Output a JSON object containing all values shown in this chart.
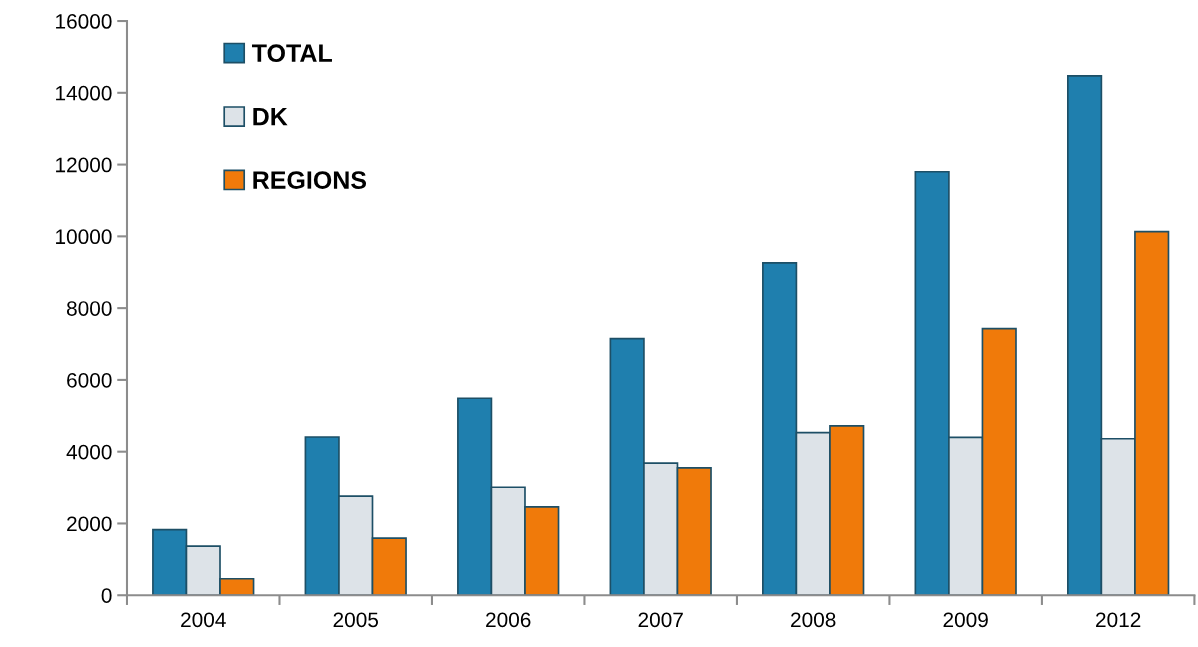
{
  "chart_data": {
    "type": "bar",
    "categories": [
      "2004",
      "2005",
      "2006",
      "2007",
      "2008",
      "2009",
      "2012"
    ],
    "series": [
      {
        "name": "TOTAL",
        "color": "#1f7fae",
        "values": [
          1830,
          4410,
          5490,
          7150,
          9260,
          11800,
          14470
        ]
      },
      {
        "name": "DK",
        "color": "#dde3e8",
        "values": [
          1370,
          2760,
          3010,
          3680,
          4530,
          4400,
          4360
        ]
      },
      {
        "name": "REGIONS",
        "color": "#f07a0a",
        "values": [
          460,
          1590,
          2460,
          3550,
          4720,
          7430,
          10130
        ]
      }
    ],
    "ylim": [
      0,
      16000
    ],
    "yticks": [
      0,
      2000,
      4000,
      6000,
      8000,
      10000,
      12000,
      14000,
      16000
    ],
    "grid": false,
    "legend": "top left"
  }
}
